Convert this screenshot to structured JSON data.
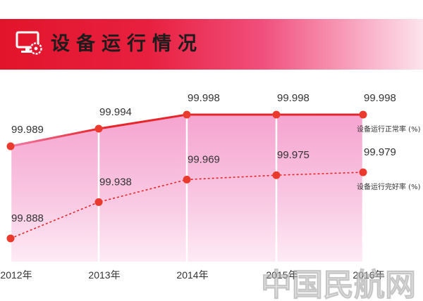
{
  "header": {
    "icon": "monitor-gear-icon"
  },
  "colors": {
    "accent": "#e8262a",
    "header_start": "#e2142b",
    "area_fill": "#f5a3cf"
  },
  "chart_data": {
    "type": "line",
    "title": "设备运行情况",
    "categories": [
      "2012年",
      "2013年",
      "2014年",
      "2015年",
      "2016年"
    ],
    "series": [
      {
        "name": "设备运行正常率 (%)",
        "values": [
          99.989,
          99.994,
          99.998,
          99.998,
          99.998
        ],
        "line_style": "solid",
        "color": "#e8262a"
      },
      {
        "name": "设备运行完好率 (%)",
        "values": [
          99.888,
          99.938,
          99.969,
          99.975,
          99.979
        ],
        "line_style": "dashed",
        "color": "#e8262a"
      }
    ],
    "grid": false,
    "legend": "right"
  },
  "watermark": "中国民航网"
}
